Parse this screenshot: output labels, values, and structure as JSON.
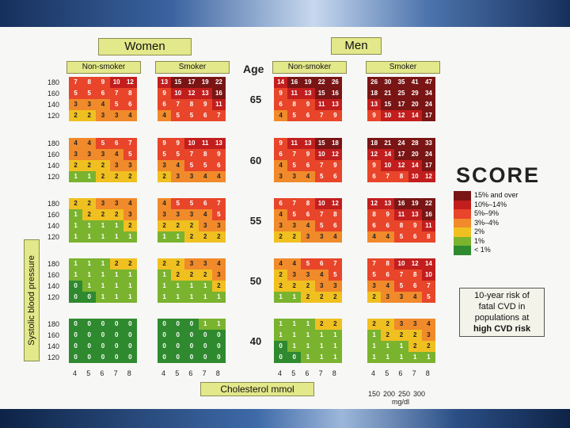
{
  "headers": {
    "women": "Women",
    "men": "Men",
    "age": "Age",
    "non_smoker": "Non-smoker",
    "smoker": "Smoker"
  },
  "ylabel": "Systolic blood pressure",
  "xlabel": "Cholesterol  mmol",
  "score_logo": "SCORE",
  "risk_box": [
    "10-year risk of",
    "fatal CVD in",
    "populations at",
    "high CVD risk"
  ],
  "legend": [
    {
      "label": "15% and over",
      "color": "#7a1515"
    },
    {
      "label": "10%–14%",
      "color": "#c21e1e"
    },
    {
      "label": "5%–9%",
      "color": "#e8452a"
    },
    {
      "label": "3%–4%",
      "color": "#f08a2a"
    },
    {
      "label": "2%",
      "color": "#f0c020"
    },
    {
      "label": "1%",
      "color": "#7ab32e"
    },
    {
      "label": "< 1%",
      "color": "#2f8a2f"
    }
  ],
  "mgdl_ticks": [
    "150",
    "200",
    "250",
    "300"
  ],
  "mgdl_unit": "mg/dl",
  "chart_data": {
    "type": "heatmap",
    "title": "10-year risk of fatal CVD in populations at high CVD risk",
    "xlabel": "Cholesterol mmol",
    "ylabel": "Systolic blood pressure",
    "cholesterol_ticks": [
      "4",
      "5",
      "6",
      "7",
      "8"
    ],
    "sbp_ticks": [
      "180",
      "160",
      "140",
      "120"
    ],
    "ages": [
      "65",
      "60",
      "55",
      "50",
      "40"
    ],
    "panels": {
      "women_non_smoker": [
        [
          [
            7,
            8,
            9,
            10,
            12
          ],
          [
            5,
            5,
            6,
            7,
            8
          ],
          [
            3,
            3,
            4,
            5,
            6
          ],
          [
            2,
            2,
            3,
            3,
            4
          ]
        ],
        [
          [
            4,
            4,
            5,
            6,
            7
          ],
          [
            3,
            3,
            3,
            4,
            5
          ],
          [
            2,
            2,
            2,
            3,
            3
          ],
          [
            1,
            1,
            2,
            2,
            2
          ]
        ],
        [
          [
            2,
            2,
            3,
            3,
            4
          ],
          [
            1,
            2,
            2,
            2,
            3
          ],
          [
            1,
            1,
            1,
            1,
            2
          ],
          [
            1,
            1,
            1,
            1,
            1
          ]
        ],
        [
          [
            1,
            1,
            1,
            2,
            2
          ],
          [
            1,
            1,
            1,
            1,
            1
          ],
          [
            0,
            1,
            1,
            1,
            1
          ],
          [
            0,
            0,
            1,
            1,
            1
          ]
        ],
        [
          [
            0,
            0,
            0,
            0,
            0
          ],
          [
            0,
            0,
            0,
            0,
            0
          ],
          [
            0,
            0,
            0,
            0,
            0
          ],
          [
            0,
            0,
            0,
            0,
            0
          ]
        ]
      ],
      "women_smoker": [
        [
          [
            13,
            15,
            17,
            19,
            22
          ],
          [
            9,
            10,
            12,
            13,
            16
          ],
          [
            6,
            7,
            8,
            9,
            11
          ],
          [
            4,
            5,
            5,
            6,
            7
          ]
        ],
        [
          [
            9,
            9,
            10,
            11,
            13
          ],
          [
            5,
            5,
            7,
            8,
            9
          ],
          [
            3,
            4,
            5,
            5,
            6
          ],
          [
            2,
            3,
            3,
            4,
            4
          ]
        ],
        [
          [
            4,
            5,
            5,
            6,
            7
          ],
          [
            3,
            3,
            3,
            4,
            5
          ],
          [
            2,
            2,
            2,
            3,
            3
          ],
          [
            1,
            1,
            2,
            2,
            2
          ]
        ],
        [
          [
            2,
            2,
            3,
            3,
            4
          ],
          [
            1,
            2,
            2,
            2,
            3
          ],
          [
            1,
            1,
            1,
            1,
            2
          ],
          [
            1,
            1,
            1,
            1,
            1
          ]
        ],
        [
          [
            0,
            0,
            0,
            1,
            1
          ],
          [
            0,
            0,
            0,
            0,
            0
          ],
          [
            0,
            0,
            0,
            0,
            0
          ],
          [
            0,
            0,
            0,
            0,
            0
          ]
        ]
      ],
      "men_non_smoker": [
        [
          [
            14,
            16,
            19,
            22,
            26
          ],
          [
            9,
            11,
            13,
            15,
            16
          ],
          [
            6,
            8,
            9,
            11,
            13
          ],
          [
            4,
            5,
            6,
            7,
            9
          ]
        ],
        [
          [
            9,
            11,
            13,
            15,
            18
          ],
          [
            6,
            7,
            9,
            10,
            12
          ],
          [
            4,
            5,
            6,
            7,
            9
          ],
          [
            3,
            3,
            4,
            5,
            6
          ]
        ],
        [
          [
            6,
            7,
            8,
            10,
            12
          ],
          [
            4,
            5,
            6,
            7,
            8
          ],
          [
            3,
            3,
            4,
            5,
            6
          ],
          [
            2,
            2,
            3,
            3,
            4
          ]
        ],
        [
          [
            4,
            4,
            5,
            6,
            7
          ],
          [
            2,
            3,
            3,
            4,
            5
          ],
          [
            2,
            2,
            2,
            3,
            3
          ],
          [
            1,
            1,
            2,
            2,
            2
          ]
        ],
        [
          [
            1,
            1,
            1,
            2,
            2
          ],
          [
            1,
            1,
            1,
            1,
            1
          ],
          [
            0,
            1,
            1,
            1,
            1
          ],
          [
            0,
            0,
            1,
            1,
            1
          ]
        ]
      ],
      "men_smoker": [
        [
          [
            26,
            30,
            35,
            41,
            47
          ],
          [
            18,
            21,
            25,
            29,
            34
          ],
          [
            13,
            15,
            17,
            20,
            24
          ],
          [
            9,
            10,
            12,
            14,
            17
          ]
        ],
        [
          [
            18,
            21,
            24,
            28,
            33
          ],
          [
            12,
            14,
            17,
            20,
            24
          ],
          [
            9,
            10,
            12,
            14,
            17
          ],
          [
            6,
            7,
            8,
            10,
            12
          ]
        ],
        [
          [
            12,
            13,
            16,
            19,
            22
          ],
          [
            8,
            9,
            11,
            13,
            16
          ],
          [
            6,
            6,
            8,
            9,
            11
          ],
          [
            4,
            4,
            5,
            6,
            8
          ]
        ],
        [
          [
            7,
            8,
            10,
            12,
            14
          ],
          [
            5,
            6,
            7,
            8,
            10
          ],
          [
            3,
            4,
            5,
            6,
            7
          ],
          [
            2,
            3,
            3,
            4,
            5
          ]
        ],
        [
          [
            2,
            2,
            3,
            3,
            4
          ],
          [
            1,
            2,
            2,
            2,
            3
          ],
          [
            1,
            1,
            1,
            2,
            2
          ],
          [
            1,
            1,
            1,
            1,
            1
          ]
        ]
      ]
    }
  }
}
